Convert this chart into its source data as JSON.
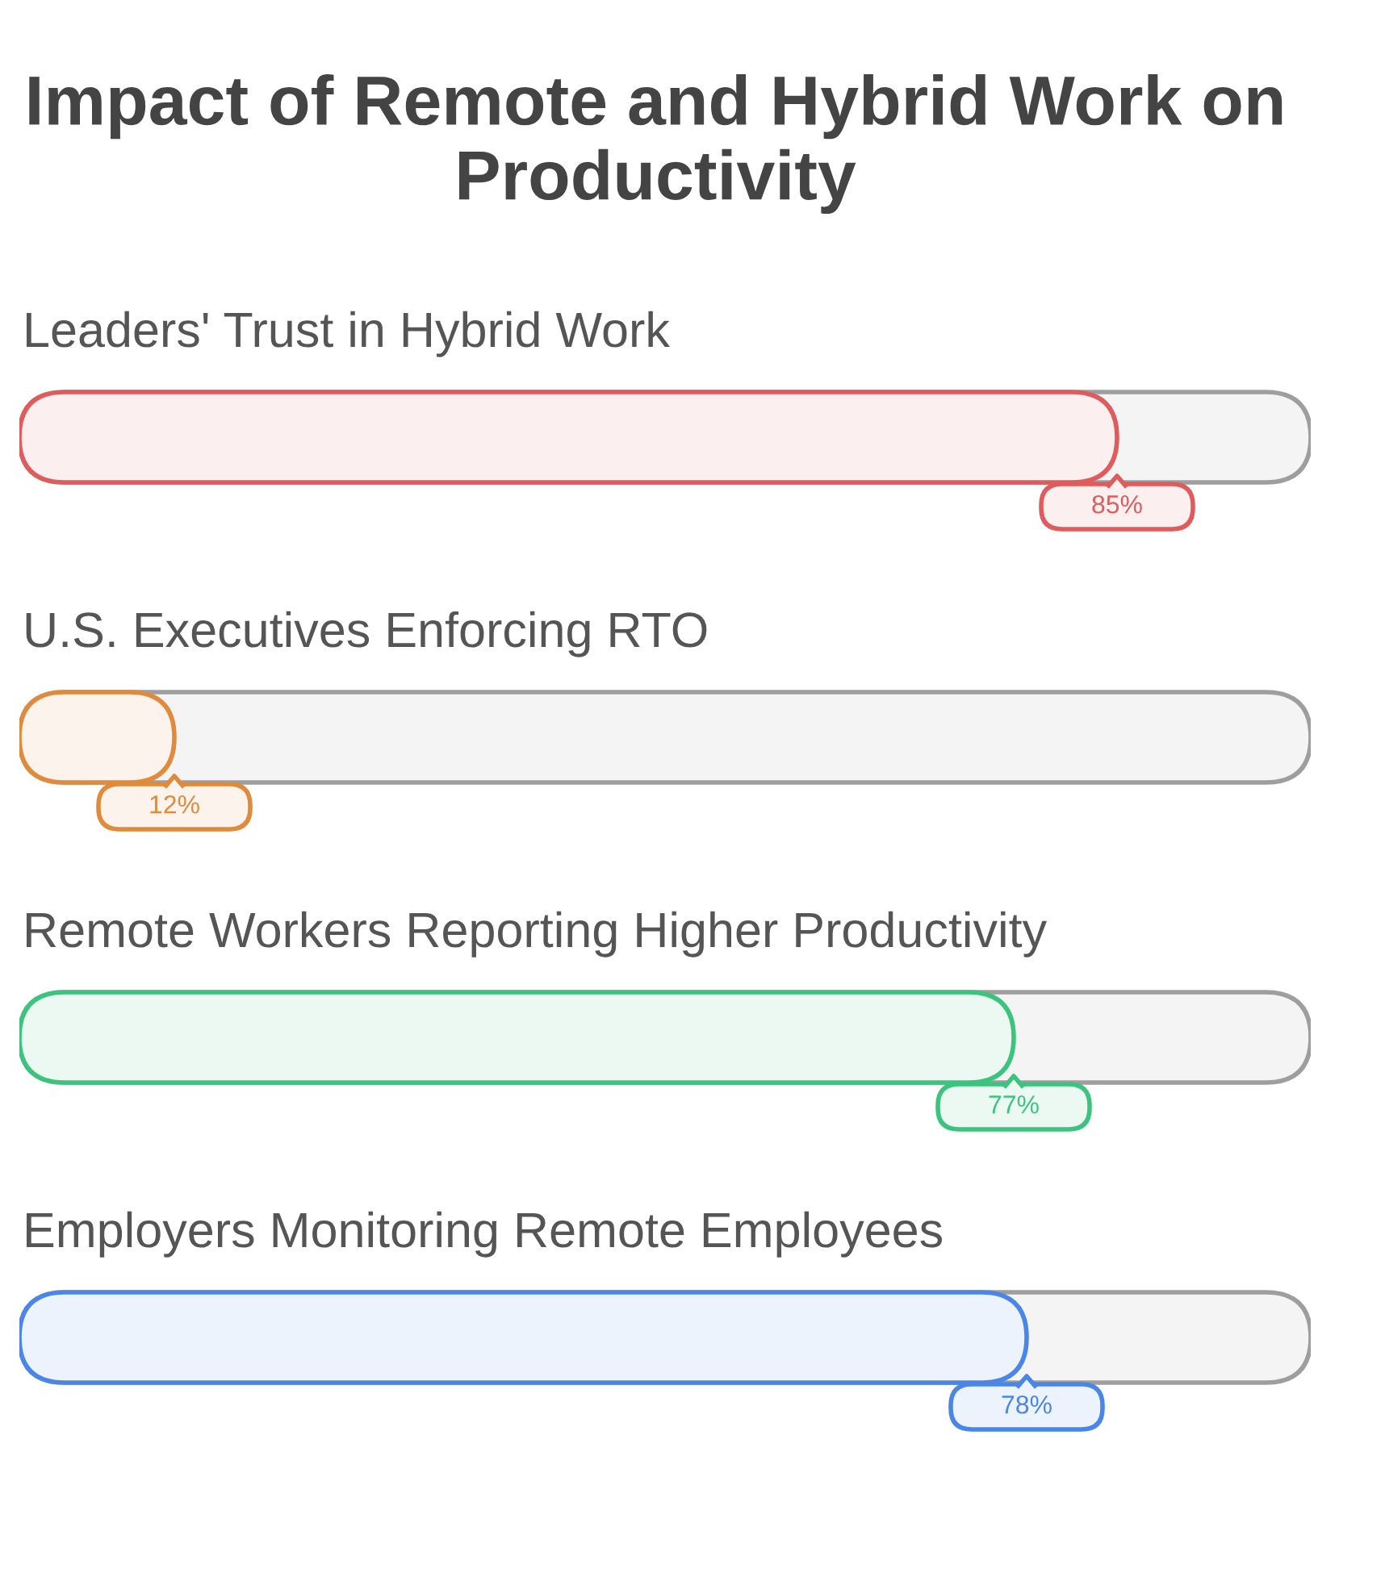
{
  "chart_data": {
    "type": "bar",
    "orientation": "horizontal",
    "title": "Impact of Remote and Hybrid Work on Productivity",
    "categories": [
      "Leaders' Trust in Hybrid Work",
      "U.S. Executives Enforcing RTO",
      "Remote Workers Reporting Higher Productivity",
      "Employers Monitoring Remote Employees"
    ],
    "values": [
      85,
      12,
      77,
      78
    ],
    "colors": [
      "#e05b5b",
      "#e08a3c",
      "#3cc47e",
      "#4a86e8"
    ],
    "value_labels": [
      "85%",
      "12%",
      "77%",
      "78%"
    ],
    "xlim": [
      0,
      100
    ],
    "tick_labels": "y"
  }
}
